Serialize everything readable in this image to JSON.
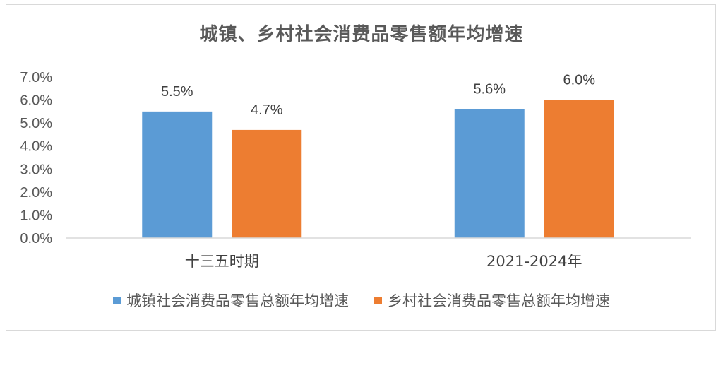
{
  "chart_data": {
    "type": "bar",
    "title": "城镇、乡村社会消费品零售额年均增速",
    "categories": [
      "十三五时期",
      "2021-2024年"
    ],
    "series": [
      {
        "name": "城镇社会消费品零售总额年均增速",
        "color": "#5b9bd5",
        "values": [
          5.5,
          5.6
        ]
      },
      {
        "name": "乡村社会消费品零售总额年均增速",
        "color": "#ed7d31",
        "values": [
          4.7,
          6.0
        ]
      }
    ],
    "ylim": [
      0,
      7
    ],
    "y_ticks": [
      "0.0%",
      "1.0%",
      "2.0%",
      "3.0%",
      "4.0%",
      "5.0%",
      "6.0%",
      "7.0%"
    ],
    "data_labels": [
      [
        "5.5%",
        "5.6%"
      ],
      [
        "4.7%",
        "6.0%"
      ]
    ],
    "grid": false,
    "legend_position": "bottom"
  }
}
